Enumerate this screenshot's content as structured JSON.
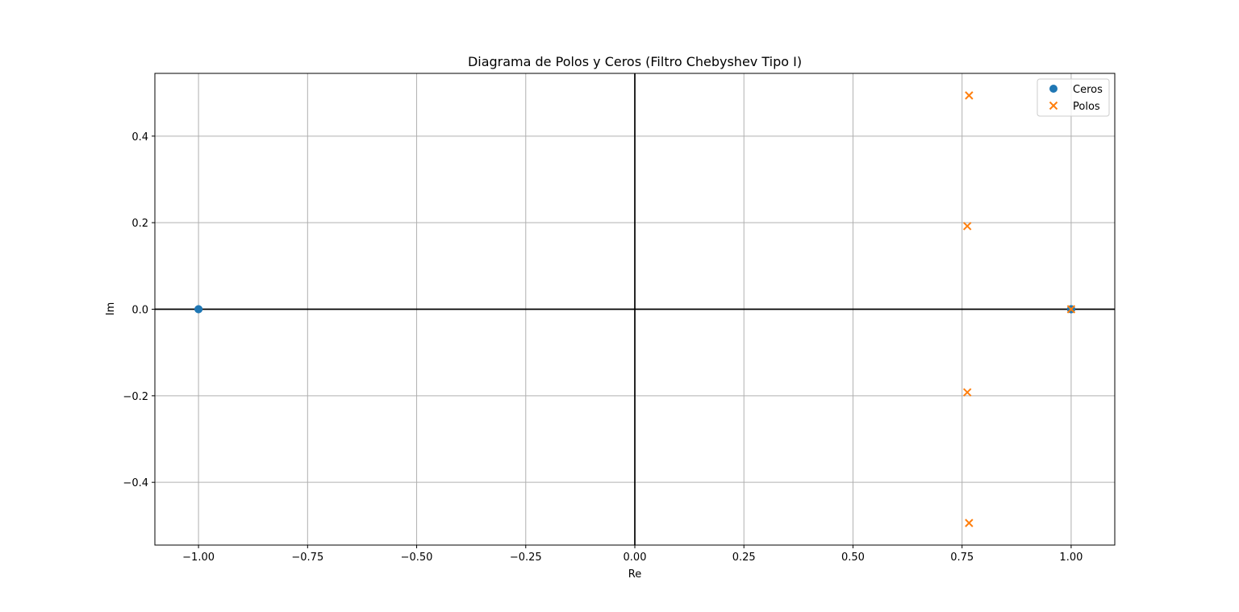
{
  "chart_data": {
    "type": "scatter",
    "title": "Diagrama de Polos y Ceros (Filtro Chebyshev Tipo I)",
    "xlabel": "Re",
    "ylabel": "Im",
    "xlim": [
      -1.1,
      1.1
    ],
    "ylim": [
      -0.545,
      0.545
    ],
    "xticks": [
      -1.0,
      -0.75,
      -0.5,
      -0.25,
      0.0,
      0.25,
      0.5,
      0.75,
      1.0
    ],
    "xtick_labels": [
      "−1.00",
      "−0.75",
      "−0.50",
      "−0.25",
      "0.00",
      "0.25",
      "0.50",
      "0.75",
      "1.00"
    ],
    "yticks": [
      -0.4,
      -0.2,
      0.0,
      0.2,
      0.4
    ],
    "ytick_labels": [
      "−0.4",
      "−0.2",
      "0.0",
      "0.2",
      "0.4"
    ],
    "grid": true,
    "reference_lines": {
      "x": 0,
      "y": 0,
      "color": "#000000"
    },
    "legend": {
      "position": "top-right"
    },
    "series": [
      {
        "name": "Ceros",
        "marker": "circle",
        "color": "#1f77b4",
        "points": [
          {
            "x": -1.0,
            "y": 0.0
          },
          {
            "x": 1.0,
            "y": 0.0
          },
          {
            "x": 1.0,
            "y": 0.0
          },
          {
            "x": 1.0,
            "y": 0.0
          },
          {
            "x": -1.0,
            "y": 0.0
          }
        ]
      },
      {
        "name": "Polos",
        "marker": "x",
        "color": "#ff7f0e",
        "points": [
          {
            "x": 0.766,
            "y": 0.494
          },
          {
            "x": 0.762,
            "y": 0.192
          },
          {
            "x": 0.762,
            "y": -0.192
          },
          {
            "x": 0.766,
            "y": -0.494
          },
          {
            "x": 1.0,
            "y": 0.0
          }
        ]
      }
    ]
  }
}
